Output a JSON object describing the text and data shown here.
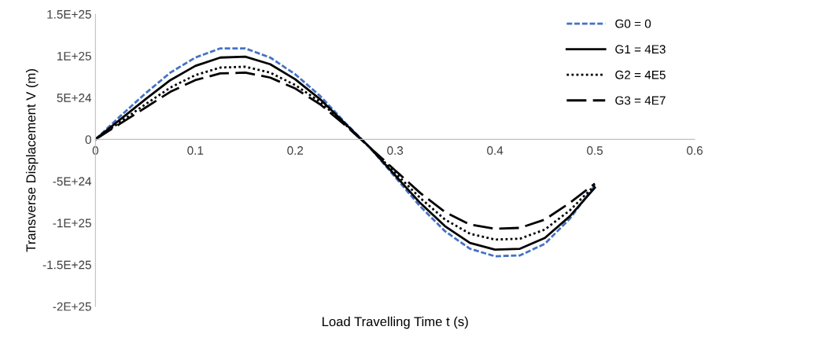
{
  "chart_data": {
    "type": "line",
    "xlabel": "Load Travelling Time t (s)",
    "ylabel": "Transverse Displacement V (m)",
    "x": [
      0,
      0.025,
      0.05,
      0.075,
      0.1,
      0.125,
      0.15,
      0.175,
      0.2,
      0.225,
      0.25,
      0.275,
      0.3,
      0.325,
      0.35,
      0.375,
      0.4,
      0.425,
      0.45,
      0.475,
      0.5
    ],
    "series": [
      {
        "name": "G0 = 0",
        "color": "#4472c4",
        "line_style": "dashed",
        "values": [
          0,
          2.8e+24,
          5.5e+24,
          8e+24,
          9.8e+24,
          1.09e+25,
          1.09e+25,
          9.8e+24,
          7.8e+24,
          5.2e+24,
          2e+24,
          -1e+24,
          -4.5e+24,
          -8e+24,
          -1.1e+25,
          -1.31e+25,
          -1.4e+25,
          -1.39e+25,
          -1.25e+25,
          -9.5e+24,
          -5.5e+24
        ]
      },
      {
        "name": "G1 = 4E3",
        "color": "#000000",
        "line_style": "solid",
        "values": [
          0,
          2.4e+24,
          4.8e+24,
          7.1e+24,
          8.8e+24,
          9.8e+24,
          9.9e+24,
          9e+24,
          7.2e+24,
          4.8e+24,
          1.9e+24,
          -1e+24,
          -4.3e+24,
          -7.6e+24,
          -1.04e+25,
          -1.24e+25,
          -1.32e+25,
          -1.31e+25,
          -1.18e+25,
          -9.2e+24,
          -5.8e+24
        ]
      },
      {
        "name": "G2 = 4E5",
        "color": "#000000",
        "line_style": "dotted",
        "values": [
          0,
          2.1e+24,
          4.2e+24,
          6.2e+24,
          7.7e+24,
          8.6e+24,
          8.7e+24,
          8e+24,
          6.5e+24,
          4.5e+24,
          1.8e+24,
          -1e+24,
          -4e+24,
          -7e+24,
          -9.6e+24,
          -1.13e+25,
          -1.2e+25,
          -1.19e+25,
          -1.08e+25,
          -8.5e+24,
          -5.5e+24
        ]
      },
      {
        "name": "G3 = 4E7",
        "color": "#000000",
        "line_style": "longdash",
        "values": [
          0,
          1.9e+24,
          3.8e+24,
          5.7e+24,
          7.1e+24,
          7.9e+24,
          8e+24,
          7.4e+24,
          6.1e+24,
          4.2e+24,
          1.7e+24,
          -1e+24,
          -3.7e+24,
          -6.4e+24,
          -8.7e+24,
          -1.02e+25,
          -1.07e+25,
          -1.06e+25,
          -9.6e+24,
          -7.6e+24,
          -5.3e+24
        ]
      }
    ],
    "xlim": [
      0,
      0.6
    ],
    "xticks": [
      0,
      0.1,
      0.2,
      0.3,
      0.4,
      0.5,
      0.6
    ],
    "ylim": [
      -2e+25,
      1.5e+25
    ],
    "yticks": [
      {
        "value": -2e+25,
        "label": "-2E+25"
      },
      {
        "value": -1.5e+25,
        "label": "-1.5E+25"
      },
      {
        "value": -1e+25,
        "label": "-1E+25"
      },
      {
        "value": -5e+24,
        "label": "-5E+24"
      },
      0,
      {
        "value": 5e+24,
        "label": "5E+24"
      },
      {
        "value": 1e+25,
        "label": "1E+25"
      },
      {
        "value": 1.5e+25,
        "label": "1.5E+25"
      }
    ],
    "grid": false,
    "legend": "top right"
  }
}
